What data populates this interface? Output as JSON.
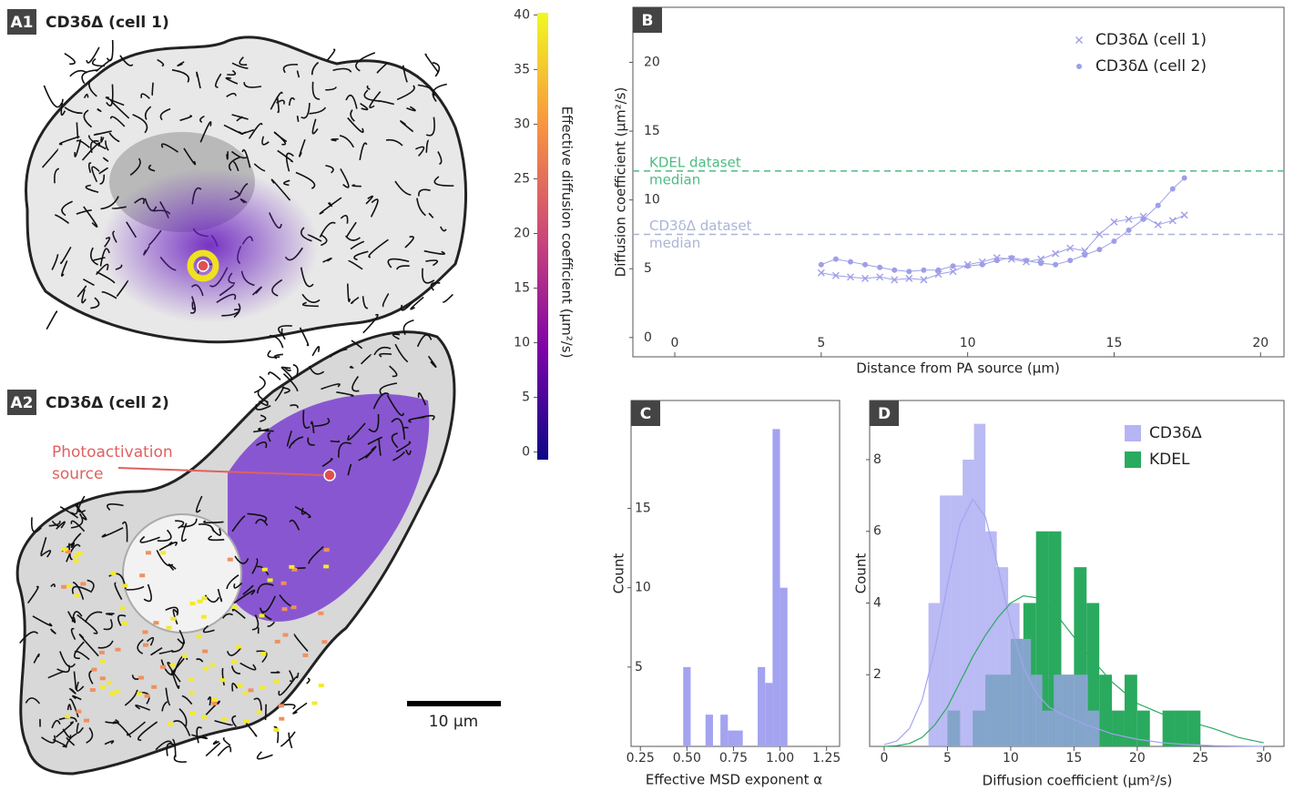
{
  "images": [
    {
      "label": "A1",
      "title": "CD3δΔ (cell 1)"
    },
    {
      "label": "A2",
      "title": "CD3δΔ (cell 2)",
      "annotation": [
        "Photoactivation",
        "source"
      ]
    }
  ],
  "scale_bar": "10 μm",
  "chart_data": [
    {
      "type": "colorbar",
      "label": "Effective diffusion coefficient (μm²/s)",
      "ylim": [
        -0.7,
        40.2
      ],
      "yticks": [
        0,
        5,
        10,
        15,
        20,
        25,
        30,
        35,
        40
      ],
      "colormap": [
        "#0d0887",
        "#7e03a8",
        "#cc4778",
        "#f89540",
        "#f0f921"
      ]
    },
    {
      "type": "line",
      "panel": "B",
      "xlabel": "Distance from PA source (μm)",
      "ylabel": "Diffusion coefficient (μm²/s)",
      "xlim": [
        -1.43,
        20.8
      ],
      "ylim": [
        -1.4,
        24
      ],
      "xticks": [
        0,
        5,
        10,
        15,
        20
      ],
      "yticks": [
        0,
        5,
        10,
        15,
        20
      ],
      "x": [
        5,
        5.5,
        6,
        6.5,
        7,
        7.5,
        8,
        8.5,
        9,
        9.5,
        10,
        10.5,
        11,
        11.5,
        12,
        12.5,
        13,
        13.5,
        14,
        14.5,
        15,
        15.5,
        16,
        16.5,
        17,
        17.4
      ],
      "series": [
        {
          "name": "CD3δΔ (cell 1)",
          "marker": "x",
          "color": "#9e9ee8",
          "values": [
            4.7,
            4.5,
            4.4,
            4.3,
            4.4,
            4.2,
            4.3,
            4.2,
            4.6,
            4.8,
            5.3,
            5.5,
            5.8,
            5.7,
            5.5,
            5.7,
            6.1,
            6.5,
            6.3,
            7.5,
            8.4,
            8.6,
            8.8,
            8.2,
            8.5,
            8.9
          ]
        },
        {
          "name": "CD3δΔ (cell 2)",
          "marker": "o",
          "color": "#9e9ee8",
          "values": [
            5.3,
            5.7,
            5.5,
            5.3,
            5.1,
            4.9,
            4.8,
            4.9,
            4.9,
            5.2,
            5.2,
            5.3,
            5.6,
            5.8,
            5.6,
            5.4,
            5.3,
            5.6,
            6.0,
            6.4,
            7.0,
            7.8,
            8.6,
            9.6,
            10.8,
            11.6
          ]
        }
      ],
      "reference_lines": [
        {
          "value": 12.1,
          "label": [
            "KDEL dataset",
            "median"
          ],
          "color": "#4dbb82"
        },
        {
          "value": 7.5,
          "label": [
            "CD3δΔ dataset",
            "median"
          ],
          "color": "#aab4d6"
        }
      ],
      "legend": "upper right"
    },
    {
      "type": "histogram",
      "panel": "C",
      "xlabel": "Effective MSD exponent α",
      "ylabel": "Count",
      "xlim": [
        0.2,
        1.32
      ],
      "ylim": [
        0,
        21.8
      ],
      "xticks": [
        0.25,
        {
          "value": 0.5,
          "label": "0.50"
        },
        0.75,
        {
          "value": 1,
          "label": "1.00"
        },
        1.25
      ],
      "yticks": [
        5,
        10,
        15
      ],
      "series": [
        {
          "color": "#a3a3f0",
          "bins": [
            0.48,
            0.52,
            0.56,
            0.6,
            0.64,
            0.68,
            0.72,
            0.76,
            0.8,
            0.84,
            0.88,
            0.92,
            0.96,
            1.0,
            1.04
          ],
          "counts": [
            5,
            0,
            0,
            2,
            0,
            2,
            1,
            1,
            0,
            0,
            5,
            4,
            20,
            10
          ]
        }
      ]
    },
    {
      "type": "histogram",
      "panel": "D",
      "xlabel": "Diffusion coefficient (μm²/s)",
      "ylabel": "Count",
      "xlim": [
        -1.15,
        31.6
      ],
      "ylim": [
        0,
        9.65
      ],
      "xticks": [
        0,
        5,
        10,
        15,
        20,
        25,
        30
      ],
      "yticks": [
        2,
        4,
        6,
        8
      ],
      "legend": "upper right",
      "series": [
        {
          "name": "CD3δΔ",
          "color": "#a3a3f0",
          "bins": [
            3.5,
            4.4,
            5.3,
            6.2,
            7.1,
            8.0,
            8.9,
            9.8,
            10.7,
            11.6,
            12.5,
            13.4,
            14.3,
            15.2,
            16.1,
            17.0
          ],
          "counts": [
            4,
            7,
            7,
            8,
            9,
            6,
            5,
            4,
            3,
            2,
            1,
            2,
            2,
            2,
            1
          ],
          "kde_x": [
            0,
            1,
            2,
            3,
            4,
            5,
            6,
            7,
            8,
            9,
            10,
            11,
            12,
            13,
            14,
            16,
            18,
            20,
            22,
            24,
            26,
            28,
            30
          ],
          "kde_y": [
            0.05,
            0.15,
            0.5,
            1.3,
            2.7,
            4.5,
            6.2,
            6.9,
            6.4,
            5.0,
            3.4,
            2.2,
            1.5,
            1.1,
            0.9,
            0.6,
            0.35,
            0.2,
            0.1,
            0.05,
            0.02,
            0.01,
            0
          ]
        },
        {
          "name": "KDEL",
          "color": "#2aaa5e",
          "bins": [
            5,
            6,
            7,
            8,
            9,
            10,
            11,
            12,
            13,
            14,
            15,
            16,
            17,
            18,
            19,
            20,
            21,
            22,
            23,
            24,
            25
          ],
          "counts": [
            1,
            0,
            1,
            2,
            2,
            3,
            4,
            6,
            6,
            2,
            5,
            4,
            2,
            1,
            2,
            1,
            0,
            1,
            1,
            1
          ],
          "kde_x": [
            0,
            1,
            2,
            3,
            4,
            5,
            6,
            7,
            8,
            9,
            10,
            11,
            12,
            13,
            14,
            16,
            18,
            20,
            22,
            24,
            26,
            28,
            30
          ],
          "kde_y": [
            0,
            0.02,
            0.08,
            0.25,
            0.6,
            1.1,
            1.8,
            2.5,
            3.1,
            3.6,
            4.0,
            4.2,
            4.15,
            3.9,
            3.5,
            2.6,
            1.8,
            1.2,
            0.9,
            0.7,
            0.5,
            0.25,
            0.1
          ]
        }
      ]
    }
  ]
}
